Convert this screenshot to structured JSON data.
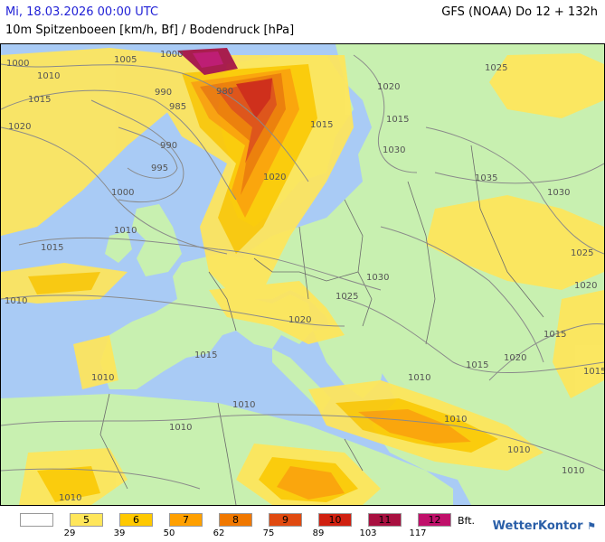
{
  "header": {
    "date": "Mi, 18.03.2026 00:00 UTC",
    "parameter": "10m Spitzenboeen [km/h, Bf] / Bodendruck [hPa]",
    "model": "GFS (NOAA) Do 12 + 132h"
  },
  "map": {
    "colors": {
      "sea": "#a9cbf5",
      "land": "#c8f0b0",
      "bf5": "#ffe65a",
      "bf6": "#ffc900",
      "bf7": "#ffa000",
      "bf8": "#f07800",
      "bf9": "#e04a10",
      "bf10": "#d02010",
      "bf11": "#a81040",
      "bf12": "#c0106a"
    },
    "isobar_labels": [
      "1000",
      "1010",
      "1005",
      "1000",
      "1015",
      "1020",
      "990",
      "985",
      "980",
      "990",
      "995",
      "1000",
      "1010",
      "1015",
      "1010",
      "1015",
      "1020",
      "1020",
      "1015",
      "1025",
      "1030",
      "1035",
      "1030",
      "1025",
      "1020",
      "1030",
      "1025",
      "1020",
      "1015",
      "1020",
      "1015",
      "1010",
      "1010",
      "1010",
      "1010",
      "1010",
      "1015",
      "1010",
      "1010",
      "1015",
      "1010"
    ]
  },
  "legend": {
    "cells": [
      "",
      "5",
      "6",
      "7",
      "8",
      "9",
      "10",
      "11",
      "12"
    ],
    "ticks": [
      "29",
      "39",
      "50",
      "62",
      "75",
      "89",
      "103",
      "117"
    ],
    "unit": "Bft.",
    "colors": [
      "#ffffff",
      "#ffe65a",
      "#ffc900",
      "#ffa000",
      "#f07800",
      "#e04a10",
      "#d02010",
      "#a81040",
      "#c0106a"
    ]
  },
  "brand": {
    "name": "WetterKontor",
    "icon": "wind-flag-icon"
  }
}
